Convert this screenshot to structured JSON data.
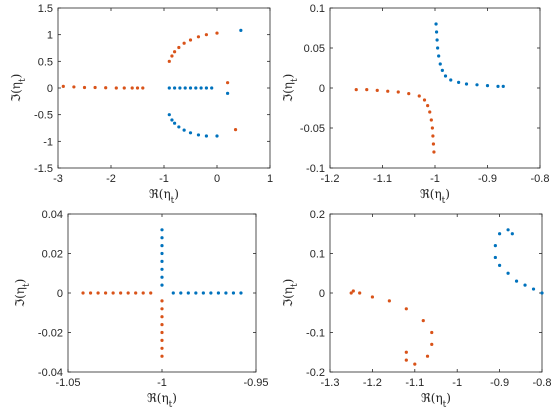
{
  "chart_data": [
    {
      "type": "scatter",
      "xlabel": "ℜ(η_t)",
      "ylabel": "ℑ(η_t)",
      "xlim": [
        -3,
        1
      ],
      "ylim": [
        -1.5,
        1.5
      ],
      "xticks": [
        -3,
        -2,
        -1,
        0,
        1
      ],
      "xtick_labels": [
        "-3",
        "-2",
        "-1",
        "0",
        "1"
      ],
      "yticks": [
        -1.5,
        -1,
        -0.5,
        0,
        0.5,
        1,
        1.5
      ],
      "ytick_labels": [
        "-1.5",
        "-1",
        "-0.5",
        "0",
        "0.5",
        "1",
        "1.5"
      ],
      "series": [
        {
          "color": "#0072BD",
          "points": [
            [
              -0.9,
              0
            ],
            [
              -0.8,
              0
            ],
            [
              -0.7,
              0
            ],
            [
              -0.6,
              0
            ],
            [
              -0.5,
              0
            ],
            [
              -0.4,
              0
            ],
            [
              -0.3,
              0
            ],
            [
              -0.2,
              0
            ],
            [
              -0.1,
              0
            ],
            [
              0.2,
              -0.1
            ],
            [
              -0.9,
              -0.5
            ],
            [
              -0.85,
              -0.6
            ],
            [
              -0.8,
              -0.66
            ],
            [
              -0.72,
              -0.73
            ],
            [
              -0.62,
              -0.79
            ],
            [
              -0.5,
              -0.84
            ],
            [
              -0.35,
              -0.88
            ],
            [
              -0.2,
              -0.9
            ],
            [
              0,
              -0.9
            ],
            [
              0.45,
              1.08
            ]
          ]
        },
        {
          "color": "#D95319",
          "points": [
            [
              -2.9,
              0.03
            ],
            [
              -2.7,
              0.02
            ],
            [
              -2.5,
              0.01
            ],
            [
              -2.3,
              0.01
            ],
            [
              -2.1,
              0.005
            ],
            [
              -1.9,
              0
            ],
            [
              -1.75,
              0
            ],
            [
              -1.6,
              0
            ],
            [
              -1.5,
              0
            ],
            [
              -1.4,
              0
            ],
            [
              -0.9,
              0.5
            ],
            [
              -0.85,
              0.6
            ],
            [
              -0.8,
              0.68
            ],
            [
              -0.72,
              0.76
            ],
            [
              -0.62,
              0.84
            ],
            [
              -0.5,
              0.9
            ],
            [
              -0.35,
              0.96
            ],
            [
              -0.2,
              1.0
            ],
            [
              0,
              1.03
            ],
            [
              0.2,
              0.1
            ],
            [
              0.35,
              -0.78
            ]
          ]
        }
      ]
    },
    {
      "type": "scatter",
      "xlabel": "ℜ(η_t)",
      "ylabel": "ℑ(η_t)",
      "xlim": [
        -1.2,
        -0.8
      ],
      "ylim": [
        -0.1,
        0.1
      ],
      "xticks": [
        -1.2,
        -1.1,
        -1,
        -0.9,
        -0.8
      ],
      "xtick_labels": [
        "-1.2",
        "-1.1",
        "-1",
        "-0.9",
        "-0.8"
      ],
      "yticks": [
        -0.1,
        -0.05,
        0,
        0.05,
        0.1
      ],
      "ytick_labels": [
        "-0.1",
        "-0.05",
        "0",
        "0.05",
        "0.1"
      ],
      "series": [
        {
          "color": "#0072BD",
          "points": [
            [
              -0.998,
              0.08
            ],
            [
              -0.997,
              0.07
            ],
            [
              -0.996,
              0.06
            ],
            [
              -0.995,
              0.05
            ],
            [
              -0.993,
              0.04
            ],
            [
              -0.99,
              0.03
            ],
            [
              -0.986,
              0.022
            ],
            [
              -0.98,
              0.015
            ],
            [
              -0.97,
              0.01
            ],
            [
              -0.955,
              0.007
            ],
            [
              -0.94,
              0.005
            ],
            [
              -0.92,
              0.004
            ],
            [
              -0.9,
              0.003
            ],
            [
              -0.88,
              0.002
            ],
            [
              -0.87,
              0.002
            ]
          ]
        },
        {
          "color": "#D95319",
          "points": [
            [
              -1.15,
              -0.002
            ],
            [
              -1.13,
              -0.002
            ],
            [
              -1.11,
              -0.003
            ],
            [
              -1.09,
              -0.004
            ],
            [
              -1.07,
              -0.005
            ],
            [
              -1.05,
              -0.007
            ],
            [
              -1.03,
              -0.01
            ],
            [
              -1.02,
              -0.015
            ],
            [
              -1.014,
              -0.022
            ],
            [
              -1.01,
              -0.03
            ],
            [
              -1.007,
              -0.04
            ],
            [
              -1.005,
              -0.05
            ],
            [
              -1.004,
              -0.06
            ],
            [
              -1.003,
              -0.07
            ],
            [
              -1.002,
              -0.08
            ]
          ]
        }
      ]
    },
    {
      "type": "scatter",
      "xlabel": "ℜ(η_t)",
      "ylabel": "ℑ(η_t)",
      "xlim": [
        -1.05,
        -0.95
      ],
      "ylim": [
        -0.04,
        0.04
      ],
      "xticks": [
        -1.05,
        -1,
        -0.95
      ],
      "xtick_labels": [
        "-1.05",
        "-1",
        "-0.95"
      ],
      "yticks": [
        -0.04,
        -0.02,
        0,
        0.02,
        0.04
      ],
      "ytick_labels": [
        "-0.04",
        "-0.02",
        "0",
        "0.02",
        "0.04"
      ],
      "series": [
        {
          "color": "#0072BD",
          "points": [
            [
              -1,
              0.032
            ],
            [
              -1,
              0.028
            ],
            [
              -1,
              0.024
            ],
            [
              -1,
              0.02
            ],
            [
              -1,
              0.016
            ],
            [
              -1,
              0.012
            ],
            [
              -1,
              0.008
            ],
            [
              -1,
              0.004
            ],
            [
              -0.994,
              0
            ],
            [
              -0.99,
              0
            ],
            [
              -0.986,
              0
            ],
            [
              -0.982,
              0
            ],
            [
              -0.978,
              0
            ],
            [
              -0.974,
              0
            ],
            [
              -0.97,
              0
            ],
            [
              -0.966,
              0
            ],
            [
              -0.962,
              0
            ],
            [
              -0.958,
              0
            ]
          ]
        },
        {
          "color": "#D95319",
          "points": [
            [
              -1.042,
              0
            ],
            [
              -1.038,
              0
            ],
            [
              -1.034,
              0
            ],
            [
              -1.03,
              0
            ],
            [
              -1.026,
              0
            ],
            [
              -1.022,
              0
            ],
            [
              -1.018,
              0
            ],
            [
              -1.014,
              0
            ],
            [
              -1.01,
              0
            ],
            [
              -1.006,
              0
            ],
            [
              -1,
              -0.004
            ],
            [
              -1,
              -0.008
            ],
            [
              -1,
              -0.012
            ],
            [
              -1,
              -0.016
            ],
            [
              -1,
              -0.02
            ],
            [
              -1,
              -0.024
            ],
            [
              -1,
              -0.028
            ],
            [
              -1,
              -0.032
            ]
          ]
        }
      ]
    },
    {
      "type": "scatter",
      "xlabel": "ℜ(η_t)",
      "ylabel": "ℑ(η_t)",
      "xlim": [
        -1.3,
        -0.8
      ],
      "ylim": [
        -0.2,
        0.2
      ],
      "xticks": [
        -1.3,
        -1.2,
        -1.1,
        -1,
        -0.9,
        -0.8
      ],
      "xtick_labels": [
        "-1.3",
        "-1.2",
        "-1.1",
        "-1",
        "-0.9",
        "-0.8"
      ],
      "yticks": [
        -0.2,
        -0.1,
        0,
        0.1,
        0.2
      ],
      "ytick_labels": [
        "-0.2",
        "-0.1",
        "0",
        "0.1",
        "0.2"
      ],
      "series": [
        {
          "color": "#0072BD",
          "points": [
            [
              -0.87,
              0.15
            ],
            [
              -0.88,
              0.16
            ],
            [
              -0.9,
              0.15
            ],
            [
              -0.91,
              0.12
            ],
            [
              -0.91,
              0.09
            ],
            [
              -0.9,
              0.07
            ],
            [
              -0.88,
              0.05
            ],
            [
              -0.86,
              0.03
            ],
            [
              -0.84,
              0.02
            ],
            [
              -0.82,
              0.01
            ],
            [
              -0.8,
              0
            ]
          ]
        },
        {
          "color": "#D95319",
          "points": [
            [
              -1.25,
              0
            ],
            [
              -1.245,
              0.005
            ],
            [
              -1.23,
              0
            ],
            [
              -1.2,
              -0.01
            ],
            [
              -1.16,
              -0.02
            ],
            [
              -1.12,
              -0.04
            ],
            [
              -1.08,
              -0.07
            ],
            [
              -1.06,
              -0.1
            ],
            [
              -1.06,
              -0.13
            ],
            [
              -1.07,
              -0.16
            ],
            [
              -1.1,
              -0.18
            ],
            [
              -1.12,
              -0.17
            ],
            [
              -1.12,
              -0.15
            ]
          ]
        }
      ]
    }
  ]
}
